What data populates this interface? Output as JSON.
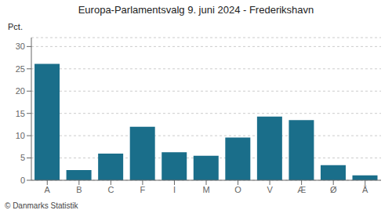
{
  "chart_data": {
    "type": "bar",
    "title": "Europa-Parlamentsvalg 9. juni 2024 - Frederikshavn",
    "categories": [
      "A",
      "B",
      "C",
      "F",
      "I",
      "M",
      "O",
      "V",
      "Æ",
      "Ø",
      "Å"
    ],
    "values": [
      26.1,
      2.3,
      6.0,
      12.0,
      6.3,
      5.5,
      9.6,
      14.3,
      13.5,
      3.4,
      1.1
    ],
    "color": "#1a6e8a",
    "ylim": [
      0,
      32
    ],
    "yticks": [
      0,
      5,
      10,
      15,
      20,
      25,
      30
    ],
    "grid": true,
    "ylabel": "Pct.",
    "annotations": [
      "© Danmarks Statistik"
    ]
  }
}
